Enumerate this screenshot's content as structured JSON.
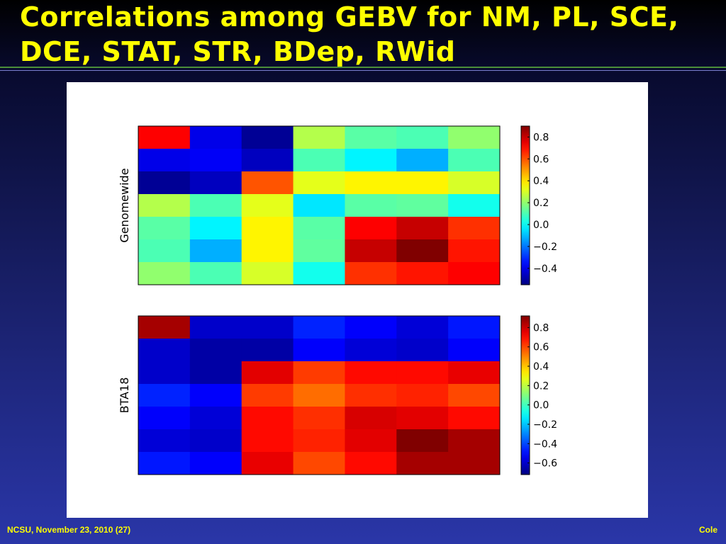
{
  "slide": {
    "title": "Correlations among GEBV for NM, PL, SCE,\nDCE, STAT, STR, BDep, RWid",
    "footer_left": "NCSU, November 23, 2010 (27)",
    "footer_right": "Cole"
  },
  "chart_data": [
    {
      "type": "heatmap",
      "ylabel": "Genomewide",
      "rows": 7,
      "cols": 7,
      "colormap": "jet",
      "clim": [
        -0.55,
        0.9
      ],
      "colorbar_ticks": [
        0.8,
        0.6,
        0.4,
        0.2,
        0.0,
        -0.2,
        -0.4
      ],
      "colorbar_tick_labels": [
        "0.8",
        "0.6",
        "0.4",
        "0.2",
        "0.0",
        "−0.2",
        "−0.4"
      ],
      "values": [
        [
          0.72,
          -0.4,
          -0.52,
          0.25,
          0.12,
          0.1,
          0.2
        ],
        [
          -0.4,
          -0.38,
          -0.46,
          0.1,
          -0.02,
          -0.12,
          0.1
        ],
        [
          -0.52,
          -0.46,
          0.6,
          0.32,
          0.37,
          0.37,
          0.3
        ],
        [
          0.25,
          0.1,
          0.32,
          -0.04,
          0.12,
          0.13,
          0.02
        ],
        [
          0.12,
          -0.02,
          0.37,
          0.12,
          0.72,
          0.8,
          0.65
        ],
        [
          0.1,
          -0.12,
          0.37,
          0.13,
          0.8,
          0.93,
          0.69
        ],
        [
          0.2,
          0.1,
          0.3,
          0.02,
          0.65,
          0.69,
          0.72
        ]
      ]
    },
    {
      "type": "heatmap",
      "ylabel": "BTA18",
      "rows": 7,
      "cols": 7,
      "colormap": "jet",
      "clim": [
        -0.72,
        0.92
      ],
      "colorbar_ticks": [
        0.8,
        0.6,
        0.4,
        0.2,
        0.0,
        -0.2,
        -0.4,
        -0.6
      ],
      "colorbar_tick_labels": [
        "0.8",
        "0.6",
        "0.4",
        "0.2",
        "0.0",
        "−0.2",
        "−0.4",
        "−0.6"
      ],
      "values": [
        [
          0.86,
          -0.6,
          -0.6,
          -0.46,
          -0.52,
          -0.58,
          -0.48
        ],
        [
          -0.6,
          -0.66,
          -0.66,
          -0.52,
          -0.58,
          -0.6,
          -0.52
        ],
        [
          -0.6,
          -0.66,
          0.76,
          0.62,
          0.7,
          0.7,
          0.75
        ],
        [
          -0.46,
          -0.52,
          0.62,
          0.54,
          0.64,
          0.66,
          0.6
        ],
        [
          -0.52,
          -0.58,
          0.7,
          0.64,
          0.78,
          0.76,
          0.7
        ],
        [
          -0.58,
          -0.6,
          0.7,
          0.66,
          0.76,
          0.92,
          0.86
        ],
        [
          -0.48,
          -0.52,
          0.75,
          0.6,
          0.7,
          0.86,
          0.86
        ]
      ]
    }
  ]
}
